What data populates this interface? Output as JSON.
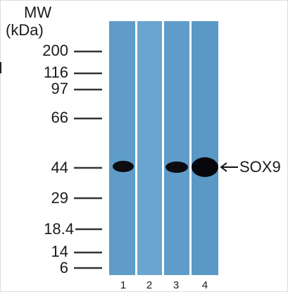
{
  "axis": {
    "title": "MW",
    "unit": "(kDa)",
    "markers": [
      200,
      116,
      97,
      66,
      44,
      29,
      18.4,
      14,
      6
    ]
  },
  "lanes": [
    "1",
    "2",
    "3",
    "4"
  ],
  "band_label": "SOX9"
}
